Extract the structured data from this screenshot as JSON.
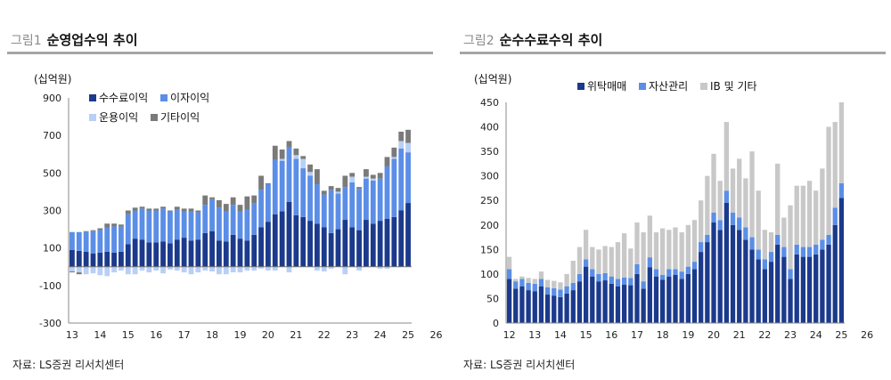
{
  "colors": {
    "navy": "#1b3a8c",
    "blue": "#5b8ee6",
    "light": "#b9cff5",
    "dark_gray": "#7a7a7a",
    "gray": "#c8c8c8"
  },
  "left": {
    "title_num": "그림1",
    "title_text": "순영업수익 추이",
    "unit": "(십억원)",
    "source": "자료: LS증권 리서치센터"
  },
  "right": {
    "title_num": "그림2",
    "title_text": "순수수료수익 추이",
    "unit": "(십억원)",
    "source": "자료: LS증권 리서치센터"
  },
  "chart_data": [
    {
      "type": "bar",
      "stacked": true,
      "title": "순영업수익 추이",
      "ylabel": "(십억원)",
      "ylim": [
        -300,
        900
      ],
      "yticks": [
        -300,
        -100,
        100,
        300,
        500,
        700,
        900
      ],
      "xtick_labels": [
        "13",
        "14",
        "15",
        "16",
        "17",
        "18",
        "19",
        "20",
        "21",
        "22",
        "23",
        "24",
        "25",
        "26"
      ],
      "start_year": 13,
      "legend": [
        "수수료이익",
        "이자이익",
        "운용이익",
        "기타이익"
      ],
      "series": [
        {
          "name": "수수료이익",
          "color_key": "navy",
          "values": [
            90,
            85,
            80,
            70,
            75,
            80,
            75,
            80,
            120,
            150,
            145,
            130,
            130,
            135,
            125,
            145,
            155,
            140,
            145,
            180,
            190,
            140,
            135,
            170,
            150,
            140,
            170,
            210,
            240,
            280,
            295,
            345,
            275,
            265,
            245,
            230,
            210,
            180,
            200,
            250,
            210,
            195,
            250,
            230,
            245,
            255,
            265,
            300,
            340
          ]
        },
        {
          "name": "이자이익",
          "color_key": "blue",
          "values": [
            95,
            100,
            105,
            120,
            120,
            130,
            140,
            135,
            160,
            150,
            165,
            170,
            170,
            175,
            170,
            160,
            140,
            155,
            145,
            150,
            170,
            175,
            160,
            160,
            145,
            165,
            170,
            200,
            200,
            290,
            270,
            290,
            300,
            260,
            240,
            210,
            175,
            230,
            190,
            175,
            240,
            220,
            220,
            230,
            225,
            280,
            310,
            330,
            270
          ]
        },
        {
          "name": "운용이익",
          "color_key": "light",
          "values": [
            -25,
            -30,
            -40,
            -35,
            -45,
            -50,
            -30,
            -20,
            -40,
            -40,
            -20,
            -30,
            -20,
            -35,
            -15,
            -20,
            -30,
            -40,
            -30,
            -20,
            -25,
            -40,
            -40,
            -30,
            -30,
            -20,
            -20,
            -10,
            -20,
            -20,
            10,
            -30,
            20,
            50,
            20,
            -20,
            -25,
            -10,
            10,
            -40,
            30,
            -20,
            10,
            10,
            -10,
            -10,
            10,
            40,
            50
          ]
        },
        {
          "name": "기타이익",
          "color_key": "dark_gray",
          "values": [
            -5,
            -10,
            5,
            5,
            10,
            20,
            15,
            10,
            20,
            15,
            10,
            10,
            10,
            10,
            5,
            15,
            15,
            15,
            10,
            50,
            10,
            40,
            40,
            40,
            35,
            70,
            40,
            75,
            5,
            75,
            50,
            35,
            35,
            15,
            40,
            80,
            20,
            20,
            20,
            60,
            20,
            10,
            40,
            20,
            30,
            50,
            50,
            50,
            70
          ]
        }
      ]
    },
    {
      "type": "bar",
      "stacked": true,
      "title": "순수수료수익 추이",
      "ylabel": "(십억원)",
      "ylim": [
        0,
        450
      ],
      "yticks": [
        0,
        50,
        100,
        150,
        200,
        250,
        300,
        350,
        400,
        450
      ],
      "xtick_labels": [
        "12",
        "13",
        "14",
        "15",
        "16",
        "17",
        "18",
        "19",
        "20",
        "21",
        "22",
        "23",
        "24",
        "25",
        "26"
      ],
      "start_year": 12,
      "legend": [
        "위탁매매",
        "자산관리",
        "IB 및 기타"
      ],
      "series": [
        {
          "name": "위탁매매",
          "color_key": "navy",
          "values": [
            90,
            70,
            75,
            67,
            65,
            75,
            58,
            56,
            53,
            60,
            67,
            85,
            115,
            95,
            85,
            87,
            80,
            75,
            78,
            77,
            100,
            70,
            114,
            95,
            88,
            95,
            98,
            90,
            100,
            110,
            145,
            165,
            205,
            190,
            245,
            200,
            190,
            170,
            150,
            130,
            110,
            125,
            160,
            135,
            90,
            140,
            135,
            135,
            140,
            150,
            160,
            200,
            255
          ]
        },
        {
          "name": "자산관리",
          "color_key": "blue",
          "values": [
            20,
            15,
            15,
            15,
            15,
            15,
            15,
            15,
            15,
            15,
            15,
            15,
            15,
            15,
            15,
            15,
            15,
            15,
            15,
            15,
            20,
            15,
            20,
            15,
            10,
            15,
            12,
            15,
            15,
            15,
            20,
            15,
            20,
            20,
            25,
            25,
            25,
            25,
            25,
            20,
            20,
            20,
            20,
            20,
            20,
            20,
            20,
            20,
            20,
            20,
            20,
            35,
            30
          ]
        },
        {
          "name": "IB 및 기타",
          "color_key": "gray",
          "values": [
            25,
            5,
            5,
            10,
            10,
            15,
            15,
            15,
            15,
            25,
            45,
            55,
            60,
            45,
            50,
            55,
            60,
            75,
            90,
            60,
            85,
            100,
            85,
            75,
            95,
            80,
            85,
            80,
            85,
            85,
            85,
            120,
            120,
            80,
            140,
            90,
            120,
            100,
            175,
            120,
            60,
            40,
            145,
            60,
            130,
            120,
            125,
            135,
            110,
            145,
            220,
            175,
            165
          ]
        }
      ]
    }
  ]
}
